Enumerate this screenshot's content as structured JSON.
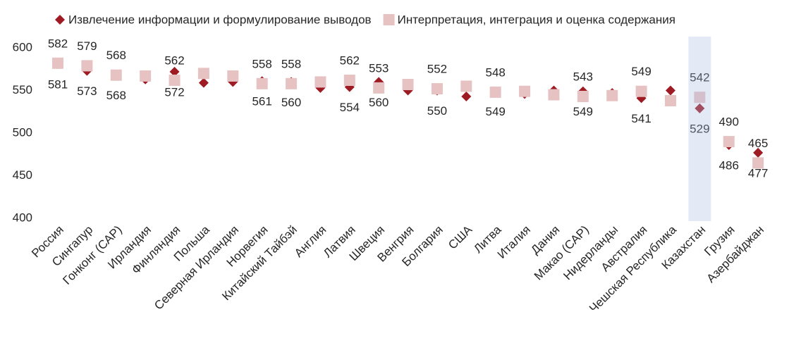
{
  "chart_data": {
    "type": "dot",
    "categories": [
      "Россия",
      "Сингапур",
      "Гонконг (САР)",
      "Ирландия",
      "Финляндия",
      "Польша",
      "Северная Ирландия",
      "Норвегия",
      "Китайский Тайбэй",
      "Англия",
      "Латвия",
      "Швеция",
      "Венгрия",
      "Болгария",
      "США",
      "Литва",
      "Италия",
      "Дания",
      "Макао (САР)",
      "Нидерланды",
      "Австралия",
      "Чешская Республика",
      "Казахстан",
      "Грузия",
      "Азербайджан"
    ],
    "series": [
      {
        "name": "Извлечение информации и формулирование выводов",
        "color": "#9e1b24",
        "marker": "diamond",
        "label_position": "below",
        "values": [
          581,
          573,
          568,
          563,
          572,
          559,
          560,
          561,
          560,
          553,
          554,
          560,
          550,
          550,
          543,
          549,
          546,
          550,
          549,
          547,
          541,
          550,
          529,
          486,
          477
        ],
        "show_value_labels": [
          true,
          true,
          true,
          false,
          true,
          false,
          false,
          true,
          true,
          false,
          true,
          true,
          false,
          true,
          false,
          true,
          false,
          false,
          true,
          false,
          true,
          false,
          true,
          true,
          true
        ]
      },
      {
        "name": "Интерпретация, интеграция и оценка содержания",
        "color": "#e6c3c2",
        "marker": "square",
        "label_position": "above",
        "values": [
          582,
          579,
          568,
          567,
          562,
          570,
          567,
          558,
          558,
          560,
          562,
          553,
          557,
          552,
          555,
          548,
          549,
          545,
          543,
          544,
          549,
          538,
          542,
          490,
          465
        ],
        "show_value_labels": [
          true,
          true,
          true,
          false,
          true,
          false,
          false,
          true,
          true,
          false,
          true,
          true,
          false,
          true,
          false,
          true,
          false,
          false,
          true,
          false,
          true,
          false,
          true,
          true,
          true
        ]
      }
    ],
    "ylim": [
      400,
      600
    ],
    "yticks": [
      400,
      450,
      500,
      550,
      600
    ],
    "grid": false,
    "legend": "top",
    "highlight_index": 22
  }
}
